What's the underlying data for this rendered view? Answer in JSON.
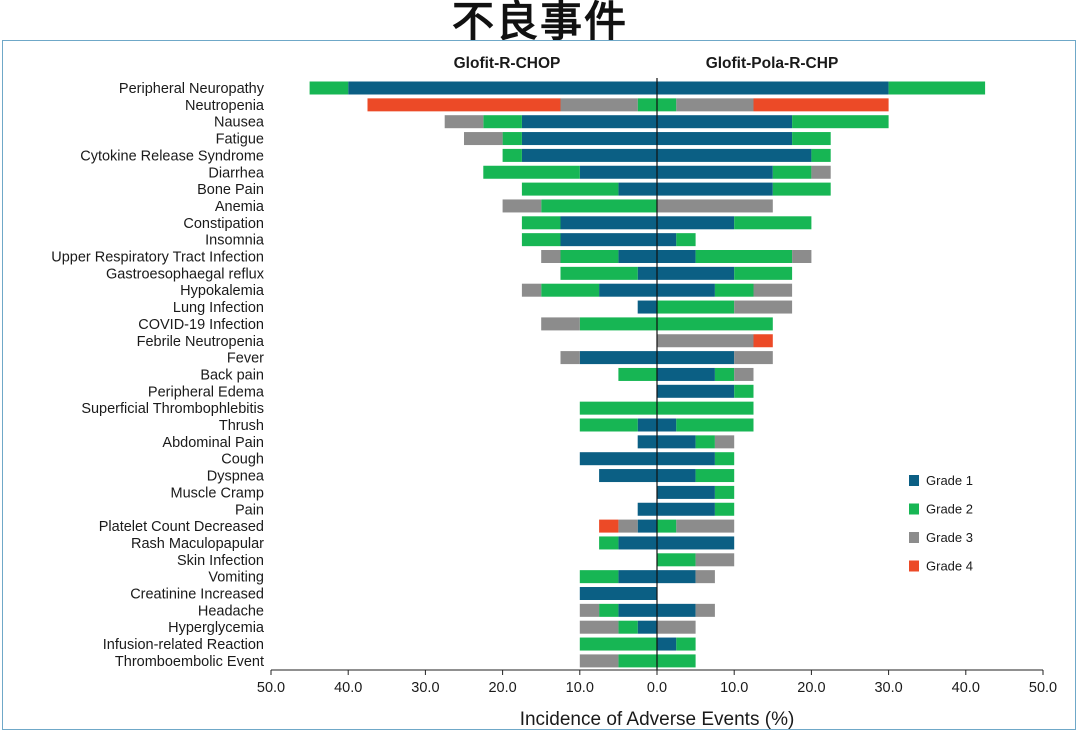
{
  "page": {
    "title": "不良事件"
  },
  "chart_data": {
    "type": "bar",
    "orientation": "horizontal-diverging",
    "xlabel": "Incidence of Adverse Events (%)",
    "xlim": [
      -50,
      50
    ],
    "xticks": [
      "50.0",
      "40.0",
      "30.0",
      "20.0",
      "10.0",
      "0.0",
      "10.0",
      "20.0",
      "30.0",
      "40.0",
      "50.0"
    ],
    "left_panel": "Glofit-R-CHOP",
    "right_panel": "Glofit-Pola-R-CHP",
    "legend_position": "right",
    "colors": {
      "Grade 1": "#0b5f84",
      "Grade 2": "#17b654",
      "Grade 3": "#8c8c8c",
      "Grade 4": "#ec4a27"
    },
    "series_names": [
      "Grade 1",
      "Grade 2",
      "Grade 3",
      "Grade 4"
    ],
    "categories": [
      "Peripheral Neuropathy",
      "Neutropenia",
      "Nausea",
      "Fatigue",
      "Cytokine Release Syndrome",
      "Diarrhea",
      "Bone Pain",
      "Anemia",
      "Constipation",
      "Insomnia",
      "Upper Respiratory Tract Infection",
      "Gastroesophaegal reflux",
      "Hypokalemia",
      "Lung Infection",
      "COVID-19 Infection",
      "Febrile Neutropenia",
      "Fever",
      "Back pain",
      "Peripheral Edema",
      "Superficial Thrombophlebitis",
      "Thrush",
      "Abdominal Pain",
      "Cough",
      "Dyspnea",
      "Muscle Cramp",
      "Pain",
      "Platelet Count Decreased",
      "Rash Maculopapular",
      "Skin Infection",
      "Vomiting",
      "Creatinine Increased",
      "Headache",
      "Hyperglycemia",
      "Infusion-related Reaction",
      "Thromboembolic Event"
    ],
    "glofit_r_chop": [
      [
        40,
        5,
        0,
        0
      ],
      [
        0,
        2.5,
        10,
        25
      ],
      [
        17.5,
        5,
        5,
        0
      ],
      [
        17.5,
        2.5,
        5,
        0
      ],
      [
        17.5,
        2.5,
        0,
        0
      ],
      [
        10,
        12.5,
        0,
        0
      ],
      [
        5,
        12.5,
        0,
        0
      ],
      [
        0,
        15,
        5,
        0
      ],
      [
        12.5,
        5,
        0,
        0
      ],
      [
        12.5,
        5,
        0,
        0
      ],
      [
        5,
        7.5,
        2.5,
        0
      ],
      [
        2.5,
        10,
        0,
        0
      ],
      [
        7.5,
        7.5,
        2.5,
        0
      ],
      [
        2.5,
        0,
        0,
        0
      ],
      [
        0,
        10,
        5,
        0
      ],
      [
        0,
        0,
        0,
        0
      ],
      [
        10,
        0,
        2.5,
        0
      ],
      [
        0,
        5,
        0,
        0
      ],
      [
        0,
        0,
        0,
        0
      ],
      [
        0,
        10,
        0,
        0
      ],
      [
        2.5,
        7.5,
        0,
        0
      ],
      [
        2.5,
        0,
        0,
        0
      ],
      [
        10,
        0,
        0,
        0
      ],
      [
        7.5,
        0,
        0,
        0
      ],
      [
        0,
        0,
        0,
        0
      ],
      [
        2.5,
        0,
        0,
        0
      ],
      [
        2.5,
        0,
        2.5,
        2.5
      ],
      [
        5,
        2.5,
        0,
        0
      ],
      [
        0,
        0,
        0,
        0
      ],
      [
        5,
        5,
        0,
        0
      ],
      [
        10,
        0,
        0,
        0
      ],
      [
        5,
        2.5,
        2.5,
        0
      ],
      [
        2.5,
        2.5,
        5,
        0
      ],
      [
        0,
        10,
        0,
        0
      ],
      [
        0,
        5,
        5,
        0
      ]
    ],
    "glofit_pola_r_chp": [
      [
        30,
        12.5,
        0,
        0
      ],
      [
        0,
        2.5,
        10,
        17.5
      ],
      [
        17.5,
        12.5,
        0,
        0
      ],
      [
        17.5,
        5,
        0,
        0
      ],
      [
        20,
        2.5,
        0,
        0
      ],
      [
        15,
        5,
        2.5,
        0
      ],
      [
        15,
        7.5,
        0,
        0
      ],
      [
        0,
        0,
        15,
        0
      ],
      [
        10,
        10,
        0,
        0
      ],
      [
        2.5,
        2.5,
        0,
        0
      ],
      [
        5,
        12.5,
        2.5,
        0
      ],
      [
        10,
        7.5,
        0,
        0
      ],
      [
        7.5,
        5,
        5,
        0
      ],
      [
        0,
        10,
        7.5,
        0
      ],
      [
        0,
        15,
        0,
        0
      ],
      [
        0,
        0,
        12.5,
        2.5
      ],
      [
        10,
        0,
        5,
        0
      ],
      [
        7.5,
        2.5,
        2.5,
        0
      ],
      [
        10,
        2.5,
        0,
        0
      ],
      [
        0,
        12.5,
        0,
        0
      ],
      [
        2.5,
        10,
        0,
        0
      ],
      [
        5,
        2.5,
        2.5,
        0
      ],
      [
        7.5,
        2.5,
        0,
        0
      ],
      [
        5,
        5,
        0,
        0
      ],
      [
        7.5,
        2.5,
        0,
        0
      ],
      [
        7.5,
        2.5,
        0,
        0
      ],
      [
        0,
        2.5,
        7.5,
        0
      ],
      [
        10,
        0,
        0,
        0
      ],
      [
        0,
        5,
        5,
        0
      ],
      [
        5,
        0,
        2.5,
        0
      ],
      [
        0,
        0,
        0,
        0
      ],
      [
        5,
        0,
        2.5,
        0
      ],
      [
        0,
        0,
        5,
        0
      ],
      [
        2.5,
        2.5,
        0,
        0
      ],
      [
        0,
        5,
        0,
        0
      ]
    ]
  }
}
